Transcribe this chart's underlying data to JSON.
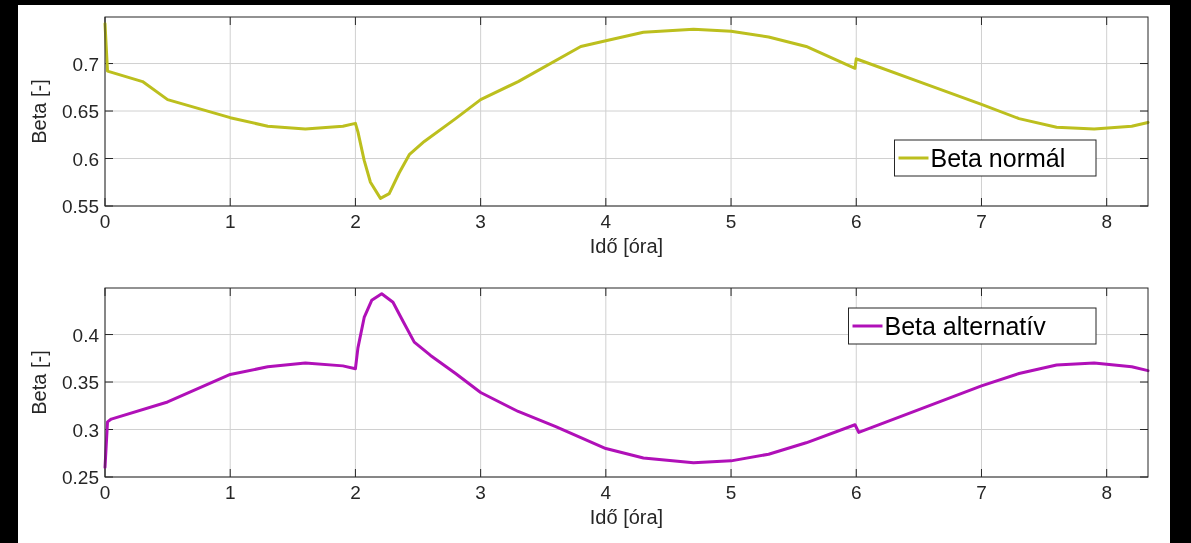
{
  "chart_data": [
    {
      "type": "line",
      "xlabel": "Idő [óra]",
      "ylabel": "Beta [-]",
      "xlim": [
        0,
        8.33
      ],
      "ylim": [
        0.55,
        0.749
      ],
      "xticks": [
        0,
        1,
        2,
        3,
        4,
        5,
        6,
        7,
        8
      ],
      "yticks": [
        0.55,
        0.6,
        0.65,
        0.7
      ],
      "grid": true,
      "legend": "bottom right",
      "line_style": "solid",
      "marker": "none",
      "series": [
        {
          "name": "Beta normál",
          "color": "#bcbf1e",
          "x": [
            0,
            0.02,
            0.3,
            0.5,
            1.0,
            1.3,
            1.6,
            1.9,
            2.0,
            2.02,
            2.07,
            2.12,
            2.2,
            2.27,
            2.35,
            2.43,
            2.55,
            2.8,
            3.0,
            3.3,
            3.8,
            4.0,
            4.3,
            4.7,
            5.0,
            5.3,
            5.6,
            5.99,
            6.0,
            6.02,
            6.5,
            7.0,
            7.3,
            7.6,
            7.9,
            8.2,
            8.33
          ],
          "values": [
            0.742,
            0.692,
            0.681,
            0.662,
            0.643,
            0.634,
            0.631,
            0.634,
            0.637,
            0.628,
            0.598,
            0.575,
            0.558,
            0.563,
            0.585,
            0.604,
            0.618,
            0.642,
            0.662,
            0.681,
            0.718,
            0.724,
            0.733,
            0.736,
            0.734,
            0.728,
            0.718,
            0.695,
            0.705,
            0.704,
            0.681,
            0.657,
            0.642,
            0.633,
            0.631,
            0.634,
            0.638
          ]
        }
      ]
    },
    {
      "type": "line",
      "xlabel": "Idő [óra]",
      "ylabel": "Beta [-]",
      "xlim": [
        0,
        8.33
      ],
      "ylim": [
        0.25,
        0.449
      ],
      "xticks": [
        0,
        1,
        2,
        3,
        4,
        5,
        6,
        7,
        8
      ],
      "yticks": [
        0.25,
        0.3,
        0.35,
        0.4
      ],
      "grid": true,
      "legend": "top right",
      "line_style": "solid",
      "marker": "none",
      "series": [
        {
          "name": "Beta alternatív",
          "color": "#b010b8",
          "x": [
            0,
            0.02,
            0.05,
            0.5,
            1.0,
            1.3,
            1.6,
            1.9,
            2.0,
            2.02,
            2.07,
            2.13,
            2.21,
            2.3,
            2.38,
            2.47,
            2.6,
            2.8,
            3.0,
            3.3,
            3.6,
            4.0,
            4.3,
            4.7,
            5.0,
            5.3,
            5.6,
            5.99,
            6.02,
            6.5,
            7.0,
            7.3,
            7.6,
            7.9,
            8.2,
            8.33
          ],
          "values": [
            0.26,
            0.308,
            0.311,
            0.329,
            0.358,
            0.366,
            0.37,
            0.367,
            0.364,
            0.386,
            0.418,
            0.436,
            0.443,
            0.434,
            0.414,
            0.392,
            0.378,
            0.359,
            0.339,
            0.319,
            0.303,
            0.28,
            0.27,
            0.265,
            0.267,
            0.274,
            0.286,
            0.305,
            0.297,
            0.321,
            0.346,
            0.359,
            0.368,
            0.37,
            0.366,
            0.362
          ]
        }
      ]
    }
  ]
}
